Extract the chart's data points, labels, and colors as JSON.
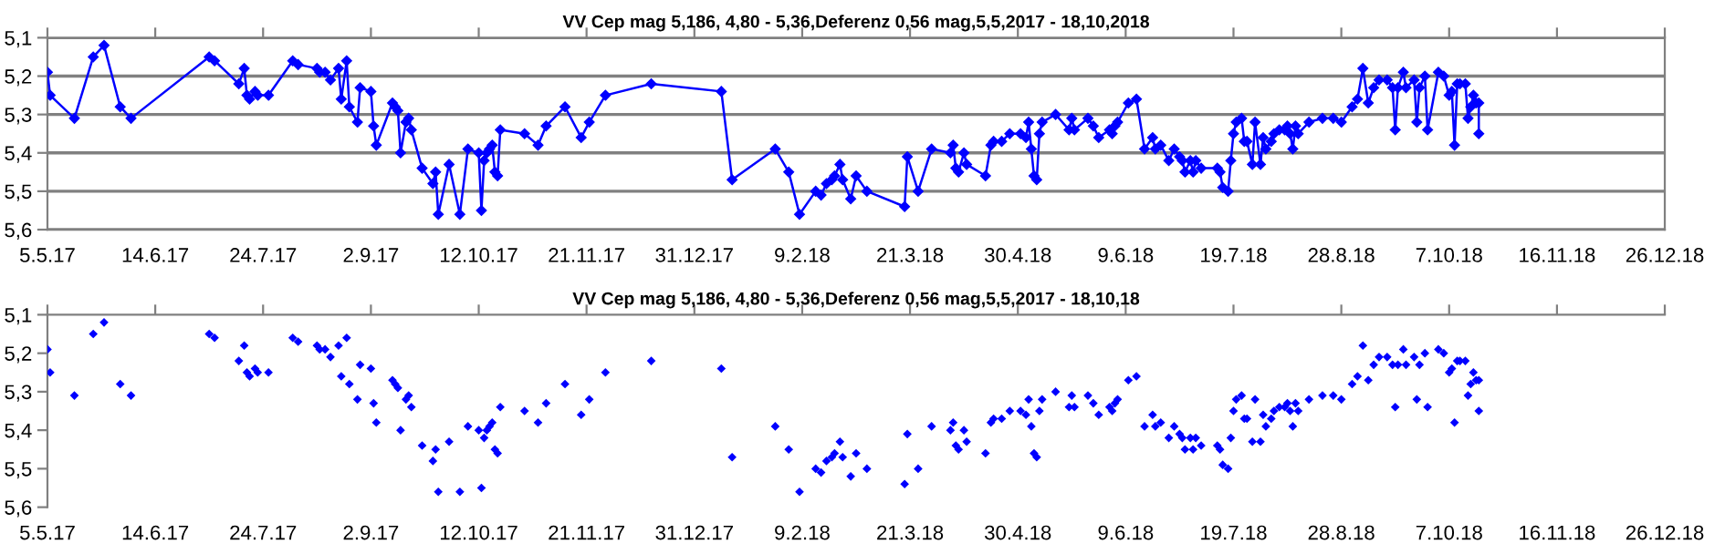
{
  "chart_data": [
    {
      "type": "line",
      "title": "VV Cep mag 5,186, 4,80 - 5,36,Deferenz 0,56 mag,5,5,2017 - 18,10,2018",
      "marker": "diamond",
      "line_style": "solid",
      "grid": "y",
      "xlim": [
        "2017-05-05",
        "2018-12-26"
      ],
      "xticks": [
        {
          "value": "2017-05-05",
          "label": "5.5.17"
        },
        {
          "value": "2017-06-14",
          "label": "14.6.17"
        },
        {
          "value": "2017-07-24",
          "label": "24.7.17"
        },
        {
          "value": "2017-09-02",
          "label": "2.9.17"
        },
        {
          "value": "2017-10-12",
          "label": "12.10.17"
        },
        {
          "value": "2017-11-21",
          "label": "21.11.17"
        },
        {
          "value": "2017-12-31",
          "label": "31.12.17"
        },
        {
          "value": "2018-02-09",
          "label": "9.2.18"
        },
        {
          "value": "2018-03-21",
          "label": "21.3.18"
        },
        {
          "value": "2018-04-30",
          "label": "30.4.18"
        },
        {
          "value": "2018-06-09",
          "label": "9.6.18"
        },
        {
          "value": "2018-07-19",
          "label": "19.7.18"
        },
        {
          "value": "2018-08-28",
          "label": "28.8.18"
        },
        {
          "value": "2018-10-07",
          "label": "7.10.18"
        },
        {
          "value": "2018-11-16",
          "label": "16.11.18"
        },
        {
          "value": "2018-12-26",
          "label": "26.12.18"
        }
      ],
      "ylim": [
        5.6,
        5.1
      ],
      "yticks": [
        {
          "value": 5.1,
          "label": "5,1"
        },
        {
          "value": 5.2,
          "label": "5,2"
        },
        {
          "value": 5.3,
          "label": "5,3"
        },
        {
          "value": 5.4,
          "label": "5,4"
        },
        {
          "value": 5.5,
          "label": "5,5"
        },
        {
          "value": 5.6,
          "label": "5,6"
        }
      ],
      "x": [
        "2017-05-05",
        "2017-05-06",
        "2017-05-15",
        "2017-05-22",
        "2017-05-26",
        "2017-06-01",
        "2017-06-05",
        "2017-07-04",
        "2017-07-06",
        "2017-07-15",
        "2017-07-17",
        "2017-07-18",
        "2017-07-19",
        "2017-07-21",
        "2017-07-22",
        "2017-07-26",
        "2017-08-04",
        "2017-08-06",
        "2017-08-13",
        "2017-08-14",
        "2017-08-16",
        "2017-08-18",
        "2017-08-21",
        "2017-08-22",
        "2017-08-24",
        "2017-08-25",
        "2017-08-28",
        "2017-08-29",
        "2017-09-02",
        "2017-09-03",
        "2017-09-04",
        "2017-09-10",
        "2017-09-11",
        "2017-09-12",
        "2017-09-13",
        "2017-09-15",
        "2017-09-16",
        "2017-09-17",
        "2017-09-21",
        "2017-09-25",
        "2017-09-26",
        "2017-09-27",
        "2017-10-01",
        "2017-10-05",
        "2017-10-08",
        "2017-10-12",
        "2017-10-13",
        "2017-10-14",
        "2017-10-15",
        "2017-10-16",
        "2017-10-17",
        "2017-10-18",
        "2017-10-19",
        "2017-10-20",
        "2017-10-29",
        "2017-11-03",
        "2017-11-06",
        "2017-11-13",
        "2017-11-19",
        "2017-11-22",
        "2017-11-28",
        "2017-12-15",
        "2018-01-10",
        "2018-01-14",
        "2018-01-30",
        "2018-02-04",
        "2018-02-08",
        "2018-02-14",
        "2018-02-16",
        "2018-02-18",
        "2018-02-20",
        "2018-02-21",
        "2018-02-23",
        "2018-02-24",
        "2018-02-27",
        "2018-03-01",
        "2018-03-05",
        "2018-03-19",
        "2018-03-20",
        "2018-03-24",
        "2018-03-29",
        "2018-04-05",
        "2018-04-06",
        "2018-04-07",
        "2018-04-08",
        "2018-04-10",
        "2018-04-11",
        "2018-04-18",
        "2018-04-20",
        "2018-04-21",
        "2018-04-24",
        "2018-04-27",
        "2018-05-01",
        "2018-05-03",
        "2018-05-04",
        "2018-05-05",
        "2018-05-06",
        "2018-05-07",
        "2018-05-08",
        "2018-05-09",
        "2018-05-14",
        "2018-05-19",
        "2018-05-20",
        "2018-05-21",
        "2018-05-26",
        "2018-05-28",
        "2018-05-30",
        "2018-06-03",
        "2018-06-04",
        "2018-06-05",
        "2018-06-06",
        "2018-06-10",
        "2018-06-13",
        "2018-06-16",
        "2018-06-19",
        "2018-06-20",
        "2018-06-22",
        "2018-06-25",
        "2018-06-27",
        "2018-06-29",
        "2018-06-30",
        "2018-07-01",
        "2018-07-03",
        "2018-07-04",
        "2018-07-05",
        "2018-07-07",
        "2018-07-13",
        "2018-07-14",
        "2018-07-15",
        "2018-07-17",
        "2018-07-18",
        "2018-07-19",
        "2018-07-20",
        "2018-07-22",
        "2018-07-23",
        "2018-07-24",
        "2018-07-26",
        "2018-07-27",
        "2018-07-29",
        "2018-07-30",
        "2018-07-31",
        "2018-08-02",
        "2018-08-03",
        "2018-08-05",
        "2018-08-07",
        "2018-08-08",
        "2018-08-09",
        "2018-08-10",
        "2018-08-11",
        "2018-08-12",
        "2018-08-16",
        "2018-08-21",
        "2018-08-25",
        "2018-08-28",
        "2018-09-01",
        "2018-09-03",
        "2018-09-05",
        "2018-09-07",
        "2018-09-09",
        "2018-09-11",
        "2018-09-14",
        "2018-09-16",
        "2018-09-17",
        "2018-09-18",
        "2018-09-20",
        "2018-09-21",
        "2018-09-24",
        "2018-09-25",
        "2018-09-26",
        "2018-09-28",
        "2018-09-29",
        "2018-10-03",
        "2018-10-05",
        "2018-10-07",
        "2018-10-08",
        "2018-10-09",
        "2018-10-10",
        "2018-10-11",
        "2018-10-13",
        "2018-10-14",
        "2018-10-15",
        "2018-10-16",
        "2018-10-17",
        "2018-10-18",
        "2018-10-18"
      ],
      "series": [
        {
          "color": "#0000ff",
          "values": [
            5.19,
            5.25,
            5.31,
            5.15,
            5.12,
            5.28,
            5.31,
            5.15,
            5.16,
            5.22,
            5.18,
            5.25,
            5.26,
            5.24,
            5.25,
            5.25,
            5.16,
            5.17,
            5.18,
            5.19,
            5.19,
            5.21,
            5.18,
            5.26,
            5.16,
            5.28,
            5.32,
            5.23,
            5.24,
            5.33,
            5.38,
            5.27,
            5.28,
            5.29,
            5.4,
            5.32,
            5.31,
            5.34,
            5.44,
            5.48,
            5.45,
            5.56,
            5.43,
            5.56,
            5.39,
            5.4,
            5.55,
            5.42,
            5.4,
            5.39,
            5.38,
            5.45,
            5.46,
            5.34,
            5.35,
            5.38,
            5.33,
            5.28,
            5.36,
            5.32,
            5.25,
            5.22,
            5.24,
            5.47,
            5.39,
            5.45,
            5.56,
            5.5,
            5.51,
            5.48,
            5.47,
            5.46,
            5.43,
            5.47,
            5.52,
            5.46,
            5.5,
            5.54,
            5.41,
            5.5,
            5.39,
            5.4,
            5.38,
            5.44,
            5.45,
            5.4,
            5.43,
            5.46,
            5.38,
            5.37,
            5.37,
            5.35,
            5.35,
            5.36,
            5.32,
            5.39,
            5.46,
            5.47,
            5.35,
            5.32,
            5.3,
            5.34,
            5.31,
            5.34,
            5.31,
            5.33,
            5.36,
            5.34,
            5.35,
            5.33,
            5.32,
            5.27,
            5.26,
            5.39,
            5.36,
            5.39,
            5.38,
            5.42,
            5.39,
            5.41,
            5.42,
            5.45,
            5.42,
            5.45,
            5.42,
            5.44,
            5.44,
            5.45,
            5.49,
            5.5,
            5.42,
            5.35,
            5.32,
            5.31,
            5.37,
            5.37,
            5.43,
            5.32,
            5.43,
            5.36,
            5.39,
            5.37,
            5.35,
            5.34,
            5.34,
            5.33,
            5.35,
            5.39,
            5.33,
            5.35,
            5.32,
            5.31,
            5.31,
            5.32,
            5.28,
            5.26,
            5.18,
            5.27,
            5.23,
            5.21,
            5.21,
            5.23,
            5.34,
            5.23,
            5.19,
            5.23,
            5.21,
            5.32,
            5.23,
            5.2,
            5.34,
            5.19,
            5.2,
            5.25,
            5.24,
            5.38,
            5.22,
            5.22,
            5.22,
            5.31,
            5.28,
            5.25,
            5.27,
            5.27,
            5.35
          ]
        }
      ]
    },
    {
      "type": "scatter",
      "title": "VV Cep mag 5,186, 4,80 - 5,36,Deferenz 0,56 mag,5,5,2017 - 18,10,18",
      "marker": "diamond",
      "grid": false,
      "xlim": [
        "2017-05-05",
        "2018-12-26"
      ],
      "xticks": [
        {
          "value": "2017-05-05",
          "label": "5.5.17"
        },
        {
          "value": "2017-06-14",
          "label": "14.6.17"
        },
        {
          "value": "2017-07-24",
          "label": "24.7.17"
        },
        {
          "value": "2017-09-02",
          "label": "2.9.17"
        },
        {
          "value": "2017-10-12",
          "label": "12.10.17"
        },
        {
          "value": "2017-11-21",
          "label": "21.11.17"
        },
        {
          "value": "2017-12-31",
          "label": "31.12.17"
        },
        {
          "value": "2018-02-09",
          "label": "9.2.18"
        },
        {
          "value": "2018-03-21",
          "label": "21.3.18"
        },
        {
          "value": "2018-04-30",
          "label": "30.4.18"
        },
        {
          "value": "2018-06-09",
          "label": "9.6.18"
        },
        {
          "value": "2018-07-19",
          "label": "19.7.18"
        },
        {
          "value": "2018-08-28",
          "label": "28.8.18"
        },
        {
          "value": "2018-10-07",
          "label": "7.10.18"
        },
        {
          "value": "2018-11-16",
          "label": "16.11.18"
        },
        {
          "value": "2018-12-26",
          "label": "26.12.18"
        }
      ],
      "ylim": [
        5.6,
        5.1
      ],
      "yticks": [
        {
          "value": 5.1,
          "label": "5,1"
        },
        {
          "value": 5.2,
          "label": "5,2"
        },
        {
          "value": 5.3,
          "label": "5,3"
        },
        {
          "value": 5.4,
          "label": "5,4"
        },
        {
          "value": 5.5,
          "label": "5,5"
        },
        {
          "value": 5.6,
          "label": "5,6"
        }
      ],
      "x": [
        "2017-05-05",
        "2017-05-06",
        "2017-05-15",
        "2017-05-22",
        "2017-05-26",
        "2017-06-01",
        "2017-06-05",
        "2017-07-04",
        "2017-07-06",
        "2017-07-15",
        "2017-07-17",
        "2017-07-18",
        "2017-07-19",
        "2017-07-21",
        "2017-07-22",
        "2017-07-26",
        "2017-08-04",
        "2017-08-06",
        "2017-08-13",
        "2017-08-14",
        "2017-08-16",
        "2017-08-18",
        "2017-08-21",
        "2017-08-22",
        "2017-08-24",
        "2017-08-25",
        "2017-08-28",
        "2017-08-29",
        "2017-09-02",
        "2017-09-03",
        "2017-09-04",
        "2017-09-10",
        "2017-09-11",
        "2017-09-12",
        "2017-09-13",
        "2017-09-15",
        "2017-09-16",
        "2017-09-17",
        "2017-09-21",
        "2017-09-25",
        "2017-09-26",
        "2017-09-27",
        "2017-10-01",
        "2017-10-05",
        "2017-10-08",
        "2017-10-12",
        "2017-10-13",
        "2017-10-14",
        "2017-10-15",
        "2017-10-16",
        "2017-10-17",
        "2017-10-18",
        "2017-10-19",
        "2017-10-20",
        "2017-10-29",
        "2017-11-03",
        "2017-11-06",
        "2017-11-13",
        "2017-11-19",
        "2017-11-22",
        "2017-11-28",
        "2017-12-15",
        "2018-01-10",
        "2018-01-14",
        "2018-01-30",
        "2018-02-04",
        "2018-02-08",
        "2018-02-14",
        "2018-02-16",
        "2018-02-18",
        "2018-02-20",
        "2018-02-21",
        "2018-02-23",
        "2018-02-24",
        "2018-02-27",
        "2018-03-01",
        "2018-03-05",
        "2018-03-19",
        "2018-03-20",
        "2018-03-24",
        "2018-03-29",
        "2018-04-05",
        "2018-04-06",
        "2018-04-07",
        "2018-04-08",
        "2018-04-10",
        "2018-04-11",
        "2018-04-18",
        "2018-04-20",
        "2018-04-21",
        "2018-04-24",
        "2018-04-27",
        "2018-05-01",
        "2018-05-03",
        "2018-05-04",
        "2018-05-05",
        "2018-05-06",
        "2018-05-07",
        "2018-05-08",
        "2018-05-09",
        "2018-05-14",
        "2018-05-19",
        "2018-05-20",
        "2018-05-21",
        "2018-05-26",
        "2018-05-28",
        "2018-05-30",
        "2018-06-03",
        "2018-06-04",
        "2018-06-05",
        "2018-06-06",
        "2018-06-10",
        "2018-06-13",
        "2018-06-16",
        "2018-06-19",
        "2018-06-20",
        "2018-06-22",
        "2018-06-25",
        "2018-06-27",
        "2018-06-29",
        "2018-06-30",
        "2018-07-01",
        "2018-07-03",
        "2018-07-04",
        "2018-07-05",
        "2018-07-07",
        "2018-07-13",
        "2018-07-14",
        "2018-07-15",
        "2018-07-17",
        "2018-07-18",
        "2018-07-19",
        "2018-07-20",
        "2018-07-22",
        "2018-07-23",
        "2018-07-24",
        "2018-07-26",
        "2018-07-27",
        "2018-07-29",
        "2018-07-30",
        "2018-07-31",
        "2018-08-02",
        "2018-08-03",
        "2018-08-05",
        "2018-08-07",
        "2018-08-08",
        "2018-08-09",
        "2018-08-10",
        "2018-08-11",
        "2018-08-12",
        "2018-08-16",
        "2018-08-21",
        "2018-08-25",
        "2018-08-28",
        "2018-09-01",
        "2018-09-03",
        "2018-09-05",
        "2018-09-07",
        "2018-09-09",
        "2018-09-11",
        "2018-09-14",
        "2018-09-16",
        "2018-09-17",
        "2018-09-18",
        "2018-09-20",
        "2018-09-21",
        "2018-09-24",
        "2018-09-25",
        "2018-09-26",
        "2018-09-28",
        "2018-09-29",
        "2018-10-03",
        "2018-10-05",
        "2018-10-07",
        "2018-10-08",
        "2018-10-09",
        "2018-10-10",
        "2018-10-11",
        "2018-10-13",
        "2018-10-14",
        "2018-10-15",
        "2018-10-16",
        "2018-10-17",
        "2018-10-18",
        "2018-10-18"
      ],
      "series": [
        {
          "color": "#0000ff",
          "values": [
            5.19,
            5.25,
            5.31,
            5.15,
            5.12,
            5.28,
            5.31,
            5.15,
            5.16,
            5.22,
            5.18,
            5.25,
            5.26,
            5.24,
            5.25,
            5.25,
            5.16,
            5.17,
            5.18,
            5.19,
            5.19,
            5.21,
            5.18,
            5.26,
            5.16,
            5.28,
            5.32,
            5.23,
            5.24,
            5.33,
            5.38,
            5.27,
            5.28,
            5.29,
            5.4,
            5.32,
            5.31,
            5.34,
            5.44,
            5.48,
            5.45,
            5.56,
            5.43,
            5.56,
            5.39,
            5.4,
            5.55,
            5.42,
            5.4,
            5.39,
            5.38,
            5.45,
            5.46,
            5.34,
            5.35,
            5.38,
            5.33,
            5.28,
            5.36,
            5.32,
            5.25,
            5.22,
            5.24,
            5.47,
            5.39,
            5.45,
            5.56,
            5.5,
            5.51,
            5.48,
            5.47,
            5.46,
            5.43,
            5.47,
            5.52,
            5.46,
            5.5,
            5.54,
            5.41,
            5.5,
            5.39,
            5.4,
            5.38,
            5.44,
            5.45,
            5.4,
            5.43,
            5.46,
            5.38,
            5.37,
            5.37,
            5.35,
            5.35,
            5.36,
            5.32,
            5.39,
            5.46,
            5.47,
            5.35,
            5.32,
            5.3,
            5.34,
            5.31,
            5.34,
            5.31,
            5.33,
            5.36,
            5.34,
            5.35,
            5.33,
            5.32,
            5.27,
            5.26,
            5.39,
            5.36,
            5.39,
            5.38,
            5.42,
            5.39,
            5.41,
            5.42,
            5.45,
            5.42,
            5.45,
            5.42,
            5.44,
            5.44,
            5.45,
            5.49,
            5.5,
            5.42,
            5.35,
            5.32,
            5.31,
            5.37,
            5.37,
            5.43,
            5.32,
            5.43,
            5.36,
            5.39,
            5.37,
            5.35,
            5.34,
            5.34,
            5.33,
            5.35,
            5.39,
            5.33,
            5.35,
            5.32,
            5.31,
            5.31,
            5.32,
            5.28,
            5.26,
            5.18,
            5.27,
            5.23,
            5.21,
            5.21,
            5.23,
            5.34,
            5.23,
            5.19,
            5.23,
            5.21,
            5.32,
            5.23,
            5.2,
            5.34,
            5.19,
            5.2,
            5.25,
            5.24,
            5.38,
            5.22,
            5.22,
            5.22,
            5.31,
            5.28,
            5.25,
            5.27,
            5.27,
            5.35
          ]
        }
      ]
    }
  ]
}
